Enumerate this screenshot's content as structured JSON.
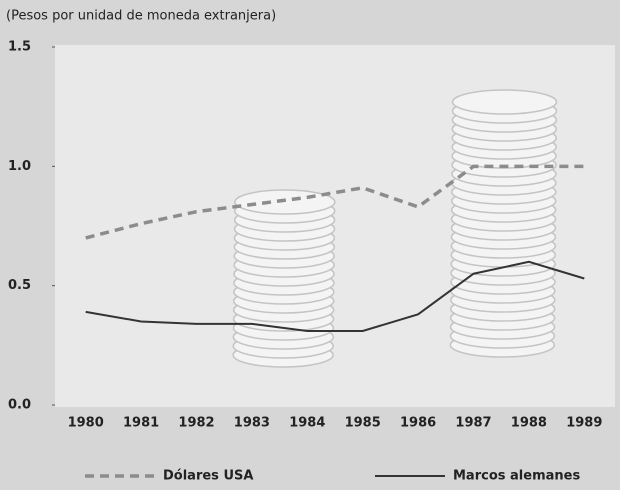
{
  "chart_data": {
    "type": "line",
    "subtitle": "(Pesos por unidad de moneda extranjera)",
    "categories": [
      "1980",
      "1981",
      "1982",
      "1983",
      "1984",
      "1985",
      "1986",
      "1987",
      "1988",
      "1989"
    ],
    "series": [
      {
        "name": "Dólares USA",
        "color": "#8c8c8c",
        "dashed": true,
        "values": [
          0.7,
          0.76,
          0.81,
          0.84,
          0.87,
          0.91,
          0.83,
          1.0,
          1.0,
          1.0
        ]
      },
      {
        "name": "Marcos alemanes",
        "color": "#333333",
        "dashed": false,
        "values": [
          0.39,
          0.35,
          0.34,
          0.34,
          0.31,
          0.31,
          0.38,
          0.55,
          0.6,
          0.53
        ]
      }
    ],
    "ylim": [
      0,
      1.5
    ],
    "yticks": [
      {
        "value": 0,
        "label": "0.0"
      },
      0.5,
      {
        "value": 1,
        "label": "1.0"
      },
      1.5
    ]
  }
}
